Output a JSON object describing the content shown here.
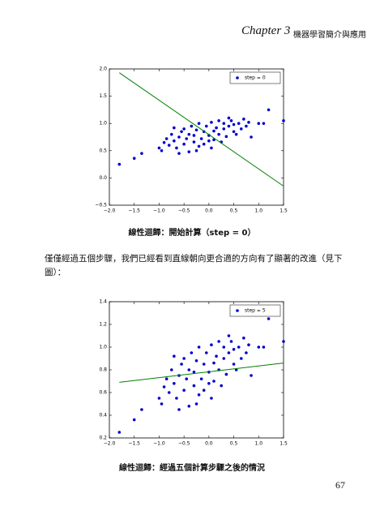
{
  "header": {
    "chapter": "Chapter 3",
    "title": "機器學習簡介與應用"
  },
  "body_text": [
    "僅僅經過五個步驟，我們已經看到直線朝向更合適的方向有了顯著的改進（見下",
    "圖）："
  ],
  "page_number": "67",
  "chart_data": [
    {
      "type": "scatter",
      "caption": "線性迴歸：開始計算（step = 0）",
      "xlim": [
        -2,
        1.5
      ],
      "ylim": [
        -0.5,
        2.0
      ],
      "xticks": [
        {
          "value": -2,
          "label": "−2.0"
        },
        {
          "value": -1.5,
          "label": "−1.5"
        },
        {
          "value": -1,
          "label": "−1.0"
        },
        {
          "value": -0.5,
          "label": "−0.5"
        },
        {
          "value": 0,
          "label": "0.0"
        },
        {
          "value": 0.5,
          "label": "0.5"
        },
        {
          "value": 1,
          "label": "1.0"
        },
        {
          "value": 1.5,
          "label": "1.5"
        }
      ],
      "yticks": [
        {
          "value": -0.5,
          "label": "−0.5"
        },
        {
          "value": 0,
          "label": "0.0"
        },
        {
          "value": 0.5,
          "label": "0.5"
        },
        {
          "value": 1,
          "label": "1.0"
        },
        {
          "value": 1.5,
          "label": "1.5"
        },
        {
          "value": 2,
          "label": "2.0"
        }
      ],
      "legend": "upper right",
      "series": [
        {
          "name": "step = 0",
          "color": "#0000cc",
          "mark": "dot",
          "x": [
            -1.8,
            -1.5,
            -1.35,
            -1.0,
            -0.95,
            -0.9,
            -0.85,
            -0.8,
            -0.75,
            -0.7,
            -0.65,
            -0.6,
            -0.55,
            -0.5,
            -0.5,
            -0.45,
            -0.4,
            -0.4,
            -0.35,
            -0.3,
            -0.3,
            -0.25,
            -0.2,
            -0.2,
            -0.15,
            -0.1,
            -0.1,
            -0.05,
            0.0,
            0.0,
            0.05,
            0.1,
            0.1,
            0.15,
            0.2,
            0.2,
            0.25,
            0.3,
            0.3,
            0.35,
            0.4,
            0.45,
            0.5,
            0.5,
            0.55,
            0.6,
            0.65,
            0.7,
            0.75,
            0.8,
            0.85,
            1.0,
            1.1,
            1.2,
            1.5,
            -0.6,
            -0.25,
            0.05,
            -0.7,
            0.4
          ],
          "values": [
            0.25,
            0.36,
            0.45,
            0.55,
            0.5,
            0.65,
            0.72,
            0.6,
            0.8,
            0.68,
            0.55,
            0.75,
            0.85,
            0.62,
            0.9,
            0.72,
            0.48,
            0.8,
            0.95,
            0.66,
            0.78,
            0.88,
            0.58,
            1.0,
            0.72,
            0.85,
            0.62,
            0.95,
            0.78,
            0.68,
            1.02,
            0.86,
            0.7,
            0.92,
            0.8,
            1.05,
            0.66,
            0.9,
            1.0,
            0.76,
            0.95,
            1.05,
            0.85,
            0.98,
            0.8,
            1.0,
            0.9,
            1.08,
            0.95,
            1.02,
            0.75,
            1.0,
            1.0,
            1.25,
            1.05,
            0.45,
            0.5,
            0.55,
            0.92,
            1.1
          ]
        },
        {
          "color": "#008000",
          "mark": "line",
          "x": [
            -1.8,
            1.5
          ],
          "values": [
            1.93,
            -0.15
          ]
        }
      ]
    },
    {
      "type": "scatter",
      "caption": "線性迴歸：經過五個計算步驟之後的情況",
      "xlim": [
        -2,
        1.5
      ],
      "ylim": [
        0.2,
        1.4
      ],
      "xticks": [
        {
          "value": -2,
          "label": "−2.0"
        },
        {
          "value": -1.5,
          "label": "−1.5"
        },
        {
          "value": -1,
          "label": "−1.0"
        },
        {
          "value": -0.5,
          "label": "−0.5"
        },
        {
          "value": 0,
          "label": "0.0"
        },
        {
          "value": 0.5,
          "label": "0.5"
        },
        {
          "value": 1,
          "label": "1.0"
        },
        {
          "value": 1.5,
          "label": "1.5"
        }
      ],
      "yticks": [
        0.2,
        0.4,
        0.6,
        0.8,
        {
          "value": 1,
          "label": "1.0"
        },
        1.2,
        1.4
      ],
      "legend": "upper right",
      "series": [
        {
          "name": "step = 5",
          "color": "#0000cc",
          "mark": "dot",
          "x": [
            -1.8,
            -1.5,
            -1.35,
            -1.0,
            -0.95,
            -0.9,
            -0.85,
            -0.8,
            -0.75,
            -0.7,
            -0.65,
            -0.6,
            -0.55,
            -0.5,
            -0.5,
            -0.45,
            -0.4,
            -0.4,
            -0.35,
            -0.3,
            -0.3,
            -0.25,
            -0.2,
            -0.2,
            -0.15,
            -0.1,
            -0.1,
            -0.05,
            0.0,
            0.0,
            0.05,
            0.1,
            0.1,
            0.15,
            0.2,
            0.2,
            0.25,
            0.3,
            0.3,
            0.35,
            0.4,
            0.45,
            0.5,
            0.5,
            0.55,
            0.6,
            0.65,
            0.7,
            0.75,
            0.8,
            0.85,
            1.0,
            1.1,
            1.2,
            1.5,
            -0.6,
            -0.25,
            0.05,
            -0.7,
            0.4
          ],
          "values": [
            0.25,
            0.36,
            0.45,
            0.55,
            0.5,
            0.65,
            0.72,
            0.6,
            0.8,
            0.68,
            0.55,
            0.75,
            0.85,
            0.62,
            0.9,
            0.72,
            0.48,
            0.8,
            0.95,
            0.66,
            0.78,
            0.88,
            0.58,
            1.0,
            0.72,
            0.85,
            0.62,
            0.95,
            0.78,
            0.68,
            1.02,
            0.86,
            0.7,
            0.92,
            0.8,
            1.05,
            0.66,
            0.9,
            1.0,
            0.76,
            0.95,
            1.05,
            0.85,
            0.98,
            0.8,
            1.0,
            0.9,
            1.08,
            0.95,
            1.02,
            0.75,
            1.0,
            1.0,
            1.25,
            1.05,
            0.45,
            0.5,
            0.55,
            0.92,
            1.1
          ]
        },
        {
          "color": "#008000",
          "mark": "line",
          "x": [
            -1.8,
            1.5
          ],
          "values": [
            0.69,
            0.86
          ]
        }
      ]
    }
  ]
}
